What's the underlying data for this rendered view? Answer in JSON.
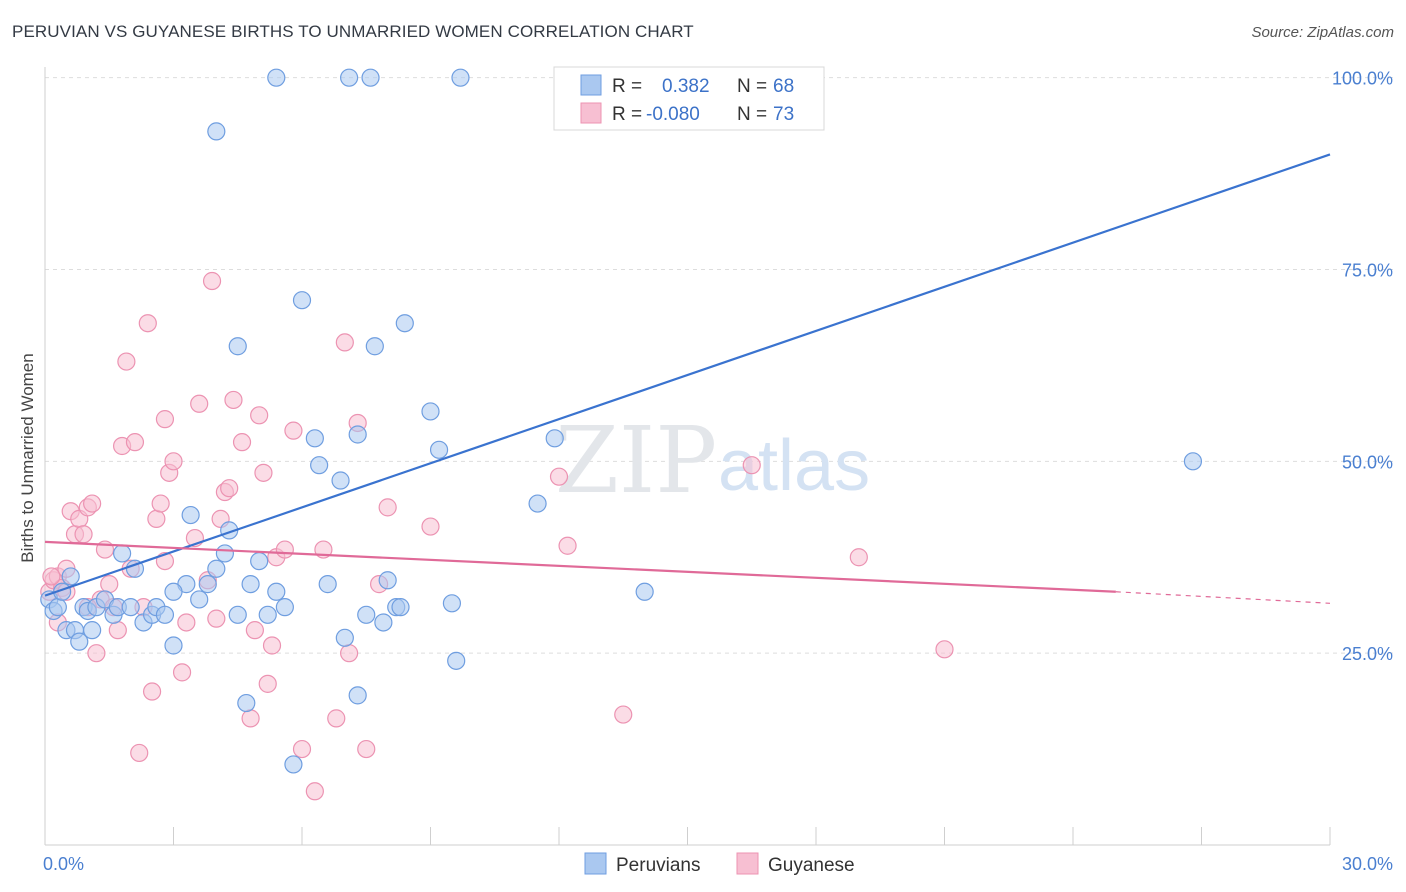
{
  "title": "PERUVIAN VS GUYANESE BIRTHS TO UNMARRIED WOMEN CORRELATION CHART",
  "source": "Source: ZipAtlas.com",
  "watermark": {
    "zip": "ZIP",
    "atlas": "atlas"
  },
  "colors": {
    "blue_fill": "#aac8f0",
    "blue_stroke": "#6f9ee0",
    "blue_line": "#3a73cf",
    "pink_fill": "#f7bfd2",
    "pink_stroke": "#ec93b2",
    "pink_line": "#e06a98",
    "grid": "#dddddd",
    "tick_text": "#4a7fd0"
  },
  "legend": {
    "rows": [
      {
        "r_label": "R =",
        "r_value": "0.382",
        "n_label": "N =",
        "n_value": "68"
      },
      {
        "r_label": "R =",
        "r_value": "-0.080",
        "n_label": "N =",
        "n_value": "73"
      }
    ]
  },
  "chart_data": {
    "type": "scatter",
    "title": "PERUVIAN VS GUYANESE BIRTHS TO UNMARRIED WOMEN CORRELATION CHART",
    "xlabel": "",
    "ylabel": "Births to Unmarried Women",
    "xlim": [
      0,
      30
    ],
    "ylim": [
      0,
      101
    ],
    "x_tick_labels": [
      {
        "value": 0,
        "label": "0.0%"
      },
      {
        "value": 30,
        "label": "30.0%"
      }
    ],
    "y_tick_labels": [
      {
        "value": 25,
        "label": "25.0%"
      },
      {
        "value": 50,
        "label": "50.0%"
      },
      {
        "value": 75,
        "label": "75.0%"
      },
      {
        "value": 100,
        "label": "100.0%"
      }
    ],
    "grid": true,
    "legend_position": "top-center",
    "series": [
      {
        "name": "Peruvians",
        "color": "#aac8f0",
        "r": 0.382,
        "n": 68,
        "trend": {
          "x": [
            0,
            30
          ],
          "y": [
            32.5,
            90
          ]
        },
        "points": [
          [
            0.1,
            32
          ],
          [
            0.2,
            30.5
          ],
          [
            0.3,
            31
          ],
          [
            0.4,
            33
          ],
          [
            0.5,
            28
          ],
          [
            0.6,
            35
          ],
          [
            0.7,
            28
          ],
          [
            0.8,
            26.5
          ],
          [
            0.9,
            31
          ],
          [
            1.0,
            30.5
          ],
          [
            1.1,
            28
          ],
          [
            1.2,
            31
          ],
          [
            1.4,
            32
          ],
          [
            1.6,
            30
          ],
          [
            1.7,
            31
          ],
          [
            1.8,
            38
          ],
          [
            2.0,
            31
          ],
          [
            2.1,
            36
          ],
          [
            2.3,
            29
          ],
          [
            2.5,
            30
          ],
          [
            2.6,
            31
          ],
          [
            2.8,
            30
          ],
          [
            3.0,
            26
          ],
          [
            3.3,
            34
          ],
          [
            3.4,
            43
          ],
          [
            3.6,
            32
          ],
          [
            3.8,
            34
          ],
          [
            4.0,
            36
          ],
          [
            4.2,
            38
          ],
          [
            4.3,
            41
          ],
          [
            4.5,
            30
          ],
          [
            4.7,
            18.5
          ],
          [
            4.8,
            34
          ],
          [
            5.0,
            37
          ],
          [
            5.2,
            30
          ],
          [
            5.4,
            33
          ],
          [
            5.6,
            31
          ],
          [
            5.8,
            10.5
          ],
          [
            6.0,
            71
          ],
          [
            6.3,
            53
          ],
          [
            6.4,
            49.5
          ],
          [
            6.6,
            34
          ],
          [
            6.9,
            47.5
          ],
          [
            7.0,
            27
          ],
          [
            7.3,
            19.5
          ],
          [
            7.3,
            53.5
          ],
          [
            7.5,
            30
          ],
          [
            7.7,
            65
          ],
          [
            7.9,
            29
          ],
          [
            8.0,
            34.5
          ],
          [
            8.2,
            31
          ],
          [
            8.3,
            31
          ],
          [
            8.4,
            68
          ],
          [
            9.0,
            56.5
          ],
          [
            9.2,
            51.5
          ],
          [
            9.6,
            24
          ],
          [
            9.5,
            31.5
          ],
          [
            11.5,
            44.5
          ],
          [
            11.9,
            53
          ],
          [
            14.0,
            33
          ],
          [
            4.0,
            93
          ],
          [
            5.4,
            100
          ],
          [
            7.1,
            100
          ],
          [
            7.6,
            100
          ],
          [
            9.7,
            100
          ],
          [
            4.5,
            65
          ],
          [
            26.8,
            50
          ],
          [
            3.0,
            33
          ]
        ]
      },
      {
        "name": "Guyanese",
        "color": "#f7bfd2",
        "r": -0.08,
        "n": 73,
        "trend": {
          "x": [
            0,
            25
          ],
          "y": [
            39.5,
            33
          ]
        },
        "trend_dashed": {
          "x": [
            25,
            30
          ],
          "y": [
            33,
            31.5
          ]
        },
        "points": [
          [
            0.1,
            33
          ],
          [
            0.2,
            34.5
          ],
          [
            0.3,
            35
          ],
          [
            0.4,
            33.5
          ],
          [
            0.5,
            36
          ],
          [
            0.6,
            43.5
          ],
          [
            0.7,
            40.5
          ],
          [
            0.8,
            42.5
          ],
          [
            0.9,
            40.5
          ],
          [
            1.0,
            44
          ],
          [
            1.1,
            44.5
          ],
          [
            1.2,
            25
          ],
          [
            1.3,
            32
          ],
          [
            1.4,
            38.5
          ],
          [
            1.5,
            34
          ],
          [
            1.6,
            31
          ],
          [
            1.7,
            28
          ],
          [
            1.8,
            52
          ],
          [
            1.9,
            63
          ],
          [
            2.0,
            36
          ],
          [
            2.1,
            52.5
          ],
          [
            2.2,
            12
          ],
          [
            2.3,
            31
          ],
          [
            2.4,
            68
          ],
          [
            2.5,
            20
          ],
          [
            2.6,
            42.5
          ],
          [
            2.7,
            44.5
          ],
          [
            2.8,
            55.5
          ],
          [
            2.9,
            48.5
          ],
          [
            3.0,
            50
          ],
          [
            3.2,
            22.5
          ],
          [
            3.3,
            29
          ],
          [
            3.5,
            40
          ],
          [
            3.6,
            57.5
          ],
          [
            3.8,
            34.5
          ],
          [
            3.9,
            73.5
          ],
          [
            4.0,
            29.5
          ],
          [
            4.1,
            42.5
          ],
          [
            4.2,
            46
          ],
          [
            4.3,
            46.5
          ],
          [
            4.4,
            58
          ],
          [
            4.6,
            52.5
          ],
          [
            4.8,
            16.5
          ],
          [
            4.9,
            28
          ],
          [
            5.0,
            56
          ],
          [
            5.1,
            48.5
          ],
          [
            5.2,
            21
          ],
          [
            5.3,
            26
          ],
          [
            5.4,
            37.5
          ],
          [
            5.6,
            38.5
          ],
          [
            5.8,
            54
          ],
          [
            6.0,
            12.5
          ],
          [
            6.3,
            7
          ],
          [
            6.5,
            38.5
          ],
          [
            6.8,
            16.5
          ],
          [
            7.0,
            65.5
          ],
          [
            7.1,
            25
          ],
          [
            7.3,
            55
          ],
          [
            7.5,
            12.5
          ],
          [
            7.8,
            34
          ],
          [
            8.0,
            44
          ],
          [
            9.0,
            41.5
          ],
          [
            12.0,
            48
          ],
          [
            12.2,
            39
          ],
          [
            13.5,
            17
          ],
          [
            16.5,
            49.5
          ],
          [
            19.0,
            37.5
          ],
          [
            21.0,
            25.5
          ],
          [
            0.3,
            29
          ],
          [
            0.15,
            35
          ],
          [
            0.5,
            33
          ],
          [
            1.0,
            31
          ],
          [
            2.8,
            37
          ]
        ]
      }
    ]
  }
}
